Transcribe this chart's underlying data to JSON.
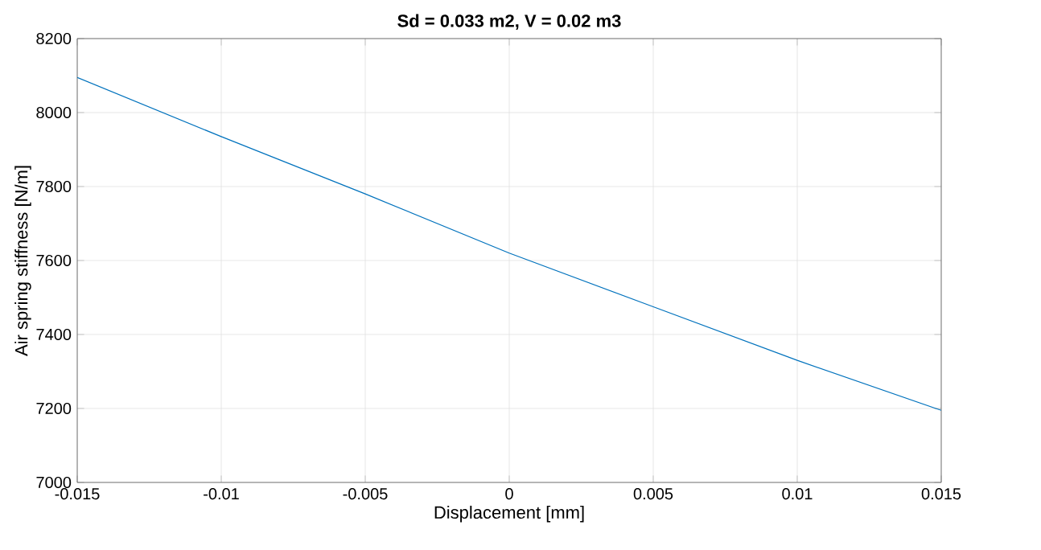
{
  "chart_data": {
    "type": "line",
    "title": "Sd = 0.033 m2, V = 0.02 m3",
    "xlabel": "Displacement [mm]",
    "ylabel": "Air spring stiffness [N/m]",
    "x": [
      -0.015,
      -0.01,
      -0.005,
      0,
      0.005,
      0.01,
      0.015
    ],
    "series": [
      {
        "color": "#0072bd",
        "values": [
          8095,
          7935,
          7780,
          7620,
          7475,
          7330,
          7195
        ]
      }
    ],
    "xlim": [
      -0.015,
      0.015
    ],
    "ylim": [
      7000,
      8200
    ],
    "xticks": [
      -0.015,
      -0.01,
      -0.005,
      0,
      0.005,
      0.01,
      0.015
    ],
    "yticks": [
      7000,
      7200,
      7400,
      7600,
      7800,
      8000,
      8200
    ],
    "grid": true,
    "marker": "none",
    "line_style": "solid"
  }
}
